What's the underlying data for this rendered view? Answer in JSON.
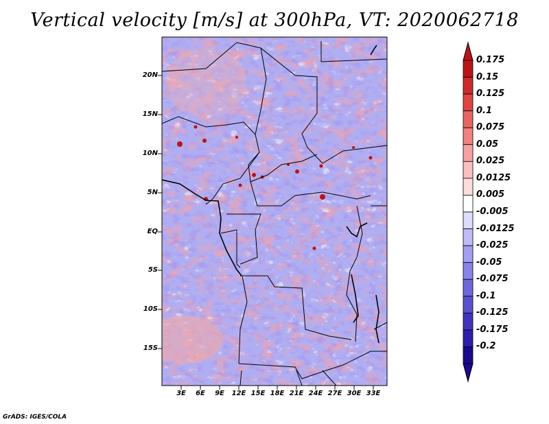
{
  "title": "Vertical velocity [m/s] at 300hPa, VT: 2020062718",
  "credit": "GrADS: IGES/COLA",
  "map": {
    "latitudes": [
      "20N",
      "15N",
      "10N",
      "5N",
      "EQ",
      "5S",
      "10S",
      "15S"
    ],
    "longitudes": [
      "3E",
      "6E",
      "9E",
      "12E",
      "15E",
      "18E",
      "21E",
      "24E",
      "27E",
      "30E",
      "33E"
    ]
  },
  "colorbar": {
    "levels": [
      "0.175",
      "0.15",
      "0.125",
      "0.1",
      "0.075",
      "0.05",
      "0.025",
      "0.0125",
      "0.005",
      "-0.005",
      "-0.0125",
      "-0.025",
      "-0.05",
      "-0.075",
      "-0.1",
      "-0.125",
      "-0.175",
      "-0.2"
    ],
    "colors": [
      "#b8141a",
      "#cc2a2e",
      "#dd4444",
      "#e86464",
      "#f08282",
      "#f5a2a2",
      "#f9c0c0",
      "#fcdcdc",
      "#ffffff",
      "#dcdcfc",
      "#c0bcf5",
      "#a49ef0",
      "#8a84e6",
      "#7068da",
      "#5a50cc",
      "#4434bb",
      "#2f1eaa",
      "#1a0a8c"
    ]
  }
}
